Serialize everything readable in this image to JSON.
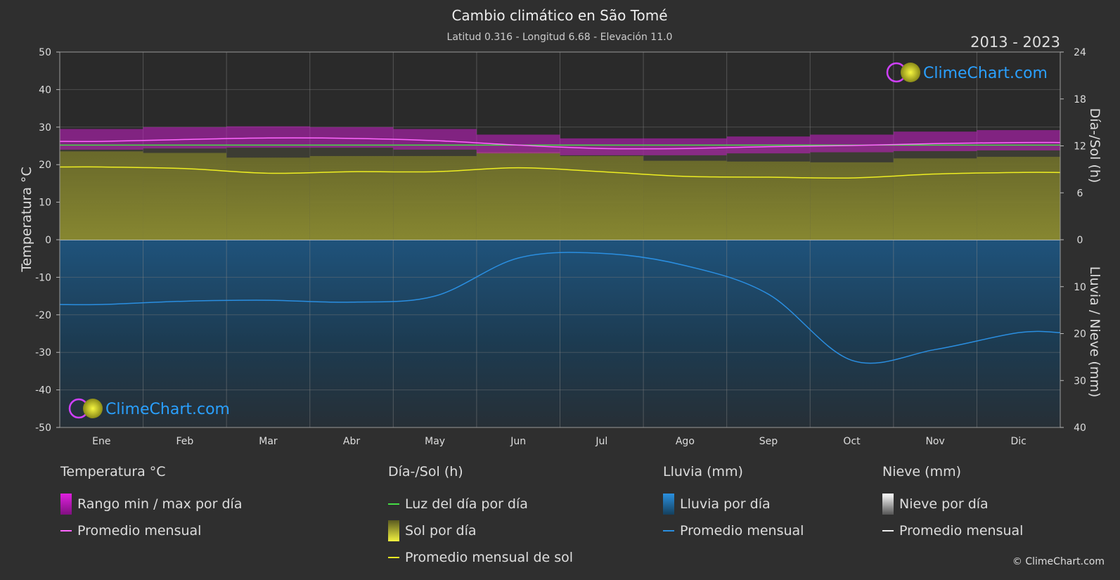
{
  "header": {
    "title": "Cambio climático en São Tomé",
    "subtitle": "Latitud 0.316 - Longitud 6.68 - Elevación 11.0",
    "years": "2013 - 2023"
  },
  "brand": {
    "text": "ClimeChart.com",
    "copyright": "© ClimeChart.com"
  },
  "colors": {
    "background": "#2f2f2f",
    "temp_range": "#c81ec8",
    "temp_avg": "#ff66ff",
    "daylight": "#44dd44",
    "sun_fill": "#9a9a2a",
    "sun_avg": "#eeee22",
    "rain_fill": "#1a5a8a",
    "rain_avg": "#2a8ee0",
    "brand": "#2aa0ff"
  },
  "chart_data": {
    "type": "line",
    "months": [
      "Ene",
      "Feb",
      "Mar",
      "Abr",
      "May",
      "Jun",
      "Jul",
      "Ago",
      "Sep",
      "Oct",
      "Nov",
      "Dic"
    ],
    "left_axis": {
      "label": "Temperatura °C",
      "ticks": [
        50,
        40,
        30,
        20,
        10,
        0,
        -10,
        -20,
        -30,
        -40,
        -50
      ],
      "range": [
        -50,
        50
      ]
    },
    "right_axis_top": {
      "label": "Día-/Sol (h)",
      "ticks": [
        24,
        18,
        12,
        6,
        0
      ],
      "range": [
        0,
        24
      ]
    },
    "right_axis_bottom": {
      "label": "Lluvia / Nieve (mm)",
      "ticks": [
        0,
        10,
        20,
        30,
        40
      ],
      "range": [
        0,
        40
      ]
    },
    "series": [
      {
        "name": "Temperatura promedio mensual",
        "unit": "°C",
        "values": [
          26.2,
          26.7,
          27.1,
          27.0,
          26.4,
          25.2,
          24.3,
          24.3,
          24.8,
          25.1,
          25.6,
          25.9
        ]
      },
      {
        "name": "Temperatura máxima diaria (rango)",
        "unit": "°C",
        "values": [
          29.5,
          30.0,
          30.2,
          30.0,
          29.5,
          28.0,
          27.0,
          27.0,
          27.5,
          28.0,
          28.8,
          29.2
        ]
      },
      {
        "name": "Temperatura mínima diaria (rango)",
        "unit": "°C",
        "values": [
          24.0,
          24.3,
          24.5,
          24.5,
          24.0,
          23.0,
          22.5,
          22.5,
          23.0,
          23.3,
          23.6,
          23.8
        ]
      },
      {
        "name": "Luz del día por día",
        "unit": "h",
        "values": [
          12.1,
          12.1,
          12.1,
          12.1,
          12.1,
          12.1,
          12.1,
          12.1,
          12.1,
          12.1,
          12.1,
          12.1
        ]
      },
      {
        "name": "Promedio mensual de sol",
        "unit": "h",
        "values": [
          9.3,
          9.1,
          8.5,
          8.7,
          8.7,
          9.2,
          8.7,
          8.1,
          8.0,
          7.9,
          8.4,
          8.6
        ]
      },
      {
        "name": "Lluvia promedio mensual",
        "unit": "mm",
        "values": [
          13.8,
          13.1,
          12.9,
          13.3,
          12.0,
          3.9,
          2.9,
          5.5,
          11.6,
          25.7,
          23.4,
          19.8
        ]
      }
    ]
  },
  "legend": [
    {
      "header": "Temperatura °C",
      "items": [
        {
          "label": "Rango min / max por día",
          "swatch": "box-temp"
        },
        {
          "label": "Promedio mensual",
          "swatch": "line-temp"
        }
      ]
    },
    {
      "header": "Día-/Sol (h)",
      "items": [
        {
          "label": "Luz del día por día",
          "swatch": "line-daylight"
        },
        {
          "label": "Sol por día",
          "swatch": "box-sun"
        },
        {
          "label": "Promedio mensual de sol",
          "swatch": "line-sun"
        }
      ]
    },
    {
      "header": "Lluvia (mm)",
      "items": [
        {
          "label": "Lluvia por día",
          "swatch": "box-rain"
        },
        {
          "label": "Promedio mensual",
          "swatch": "line-rain"
        }
      ]
    },
    {
      "header": "Nieve (mm)",
      "items": [
        {
          "label": "Nieve por día",
          "swatch": "box-snow"
        },
        {
          "label": "Promedio mensual",
          "swatch": "line-snow"
        }
      ]
    }
  ]
}
